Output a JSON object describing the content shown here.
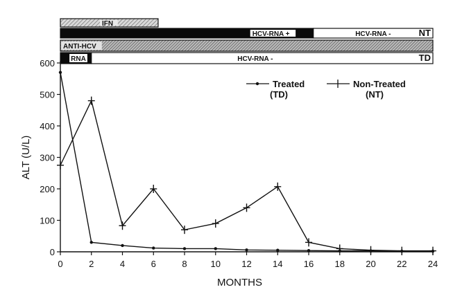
{
  "chart_data": {
    "type": "line",
    "xlabel": "MONTHS",
    "ylabel": "ALT (U/L)",
    "xlim": [
      0,
      24
    ],
    "ylim": [
      0,
      600
    ],
    "x_ticks": [
      "0",
      "2",
      "4",
      "6",
      "8",
      "10",
      "12",
      "14",
      "16",
      "18",
      "20",
      "22",
      "24"
    ],
    "y_ticks": [
      "0",
      "100",
      "200",
      "300",
      "400",
      "500",
      "600"
    ],
    "grid": false,
    "legend_position": "top-right",
    "series": [
      {
        "name": "Treated",
        "sub": "(TD)",
        "marker": "dot",
        "x": [
          0,
          2,
          4,
          6,
          8,
          10,
          12,
          14,
          16,
          18,
          20,
          22,
          24
        ],
        "y": [
          570,
          30,
          20,
          12,
          10,
          10,
          6,
          5,
          4,
          3,
          3,
          2,
          2
        ]
      },
      {
        "name": "Non-Treated",
        "sub": "(NT)",
        "marker": "plus",
        "x": [
          0,
          2,
          4,
          6,
          8,
          10,
          12,
          14,
          16,
          18,
          20,
          22,
          24
        ],
        "y": [
          275,
          480,
          83,
          200,
          70,
          90,
          140,
          207,
          30,
          10,
          5,
          3,
          3
        ]
      }
    ],
    "annotation_bars": [
      {
        "segments": [
          {
            "label": "IFN",
            "x0": 0,
            "x1": 6.3,
            "fill": "hatch-light"
          }
        ]
      },
      {
        "segments": [
          {
            "label": "HCV-RNA +",
            "x0": 0,
            "x1": 16.3,
            "fill": "black"
          },
          {
            "label": "HCV-RNA -",
            "x0": 16.3,
            "x1": 24,
            "fill": "white"
          },
          {
            "label": "NT",
            "x0": 23.3,
            "x1": 24,
            "fill": "none"
          }
        ]
      },
      {
        "segments": [
          {
            "label": "ANTI-HCV",
            "x0": 0,
            "x1": 24,
            "fill": "hatch-dark"
          }
        ]
      },
      {
        "segments": [
          {
            "label": "RNA",
            "x0": 0,
            "x1": 2,
            "fill": "black"
          },
          {
            "label": "HCV-RNA -",
            "x0": 2,
            "x1": 24,
            "fill": "white"
          },
          {
            "label": "TD",
            "x0": 23.3,
            "x1": 24,
            "fill": "none"
          }
        ]
      }
    ]
  }
}
